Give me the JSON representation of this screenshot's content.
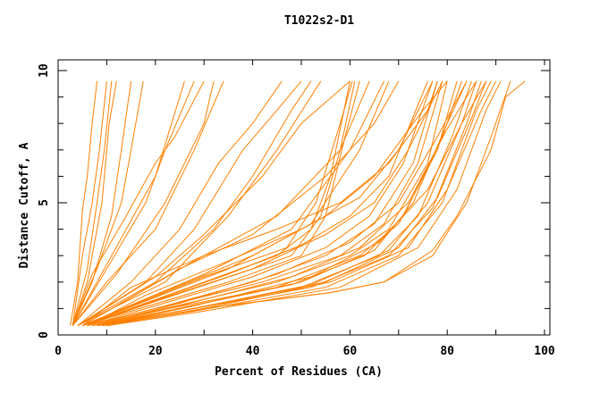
{
  "chart_data": {
    "type": "line",
    "title": "T1022s2-D1",
    "xlabel": "Percent of Residues (CA)",
    "ylabel": "Distance Cutoff, A",
    "xlim": [
      0,
      100
    ],
    "ylim": [
      0,
      10
    ],
    "x_ticks": [
      "0",
      "20",
      "40",
      "60",
      "80",
      "100"
    ],
    "y_ticks": [
      "0",
      "5",
      "10"
    ],
    "grid": false,
    "line_color": "#ff8000",
    "series": [
      {
        "points": [
          [
            2.5,
            0.35
          ],
          [
            4,
            2
          ],
          [
            5,
            4.7
          ],
          [
            6,
            6
          ],
          [
            7,
            8
          ],
          [
            8,
            9.6
          ]
        ]
      },
      {
        "points": [
          [
            3,
            0.35
          ],
          [
            5,
            3
          ],
          [
            7,
            5
          ],
          [
            8.5,
            7
          ],
          [
            10,
            9.6
          ]
        ]
      },
      {
        "points": [
          [
            3,
            0.35
          ],
          [
            6,
            2.5
          ],
          [
            8,
            5
          ],
          [
            9.5,
            7
          ],
          [
            11,
            9.6
          ]
        ]
      },
      {
        "points": [
          [
            3,
            0.35
          ],
          [
            6,
            2
          ],
          [
            9,
            5
          ],
          [
            10.5,
            8
          ],
          [
            12,
            9.6
          ]
        ]
      },
      {
        "points": [
          [
            3,
            0.35
          ],
          [
            7,
            2
          ],
          [
            11,
            4.5
          ],
          [
            13,
            7
          ],
          [
            15,
            9.6
          ]
        ]
      },
      {
        "points": [
          [
            3,
            0.35
          ],
          [
            8,
            2.5
          ],
          [
            13,
            5
          ],
          [
            15,
            7
          ],
          [
            17.5,
            9.6
          ]
        ]
      },
      {
        "points": [
          [
            3,
            0.35
          ],
          [
            8,
            2
          ],
          [
            14,
            4
          ],
          [
            20,
            6
          ],
          [
            26,
            9.6
          ]
        ]
      },
      {
        "points": [
          [
            3,
            0.35
          ],
          [
            10,
            2.5
          ],
          [
            18,
            5
          ],
          [
            22,
            7
          ],
          [
            28,
            9.6
          ]
        ]
      },
      {
        "points": [
          [
            3,
            0.35
          ],
          [
            7,
            2.3
          ],
          [
            14,
            4.5
          ],
          [
            20,
            6.5
          ],
          [
            24,
            7.5
          ],
          [
            30,
            9.6
          ]
        ]
      },
      {
        "points": [
          [
            3,
            0.35
          ],
          [
            10,
            2
          ],
          [
            20,
            4
          ],
          [
            28,
            7
          ],
          [
            34,
            9.6
          ]
        ]
      },
      {
        "points": [
          [
            3,
            0.35
          ],
          [
            12,
            2.3
          ],
          [
            22,
            5
          ],
          [
            30,
            8
          ],
          [
            32,
            9.6
          ]
        ]
      },
      {
        "points": [
          [
            4,
            0.35
          ],
          [
            15,
            2
          ],
          [
            25,
            4
          ],
          [
            33,
            6.5
          ],
          [
            40,
            8
          ],
          [
            46,
            9.6
          ]
        ]
      },
      {
        "points": [
          [
            4,
            0.35
          ],
          [
            18,
            2
          ],
          [
            28,
            4
          ],
          [
            38,
            7
          ],
          [
            45,
            8.5
          ],
          [
            50,
            9.6
          ]
        ]
      },
      {
        "points": [
          [
            4,
            0.35
          ],
          [
            20,
            2
          ],
          [
            32,
            4
          ],
          [
            40,
            6
          ],
          [
            48,
            8.5
          ],
          [
            52,
            9.6
          ]
        ]
      },
      {
        "points": [
          [
            4,
            0.35
          ],
          [
            22,
            2
          ],
          [
            35,
            4.5
          ],
          [
            45,
            7
          ],
          [
            54,
            9.6
          ]
        ]
      },
      {
        "points": [
          [
            4,
            0.35
          ],
          [
            20,
            2.2
          ],
          [
            30,
            3.8
          ],
          [
            42,
            6
          ],
          [
            50,
            8
          ],
          [
            60,
            9.6
          ]
        ]
      },
      {
        "points": [
          [
            5,
            0.35
          ],
          [
            30,
            2
          ],
          [
            45,
            3
          ],
          [
            52,
            4
          ],
          [
            56,
            6
          ],
          [
            60,
            9.6
          ]
        ]
      },
      {
        "points": [
          [
            5,
            0.35
          ],
          [
            32,
            2
          ],
          [
            48,
            3
          ],
          [
            54,
            4.5
          ],
          [
            58,
            7
          ],
          [
            61,
            9.6
          ]
        ]
      },
      {
        "points": [
          [
            5,
            0.35
          ],
          [
            35,
            2
          ],
          [
            50,
            3
          ],
          [
            55,
            4.5
          ],
          [
            59,
            7.5
          ],
          [
            62,
            9.6
          ]
        ]
      },
      {
        "points": [
          [
            5,
            0.35
          ],
          [
            30,
            2.2
          ],
          [
            47,
            3.3
          ],
          [
            53,
            5
          ],
          [
            58,
            8
          ],
          [
            60.5,
            9.6
          ]
        ]
      },
      {
        "points": [
          [
            5,
            0.35
          ],
          [
            25,
            2.5
          ],
          [
            40,
            3.8
          ],
          [
            55,
            6
          ],
          [
            65,
            8
          ],
          [
            70,
            9.6
          ]
        ]
      },
      {
        "points": [
          [
            5,
            0.35
          ],
          [
            30,
            2.3
          ],
          [
            48,
            4
          ],
          [
            60,
            7
          ],
          [
            67,
            9.6
          ]
        ]
      },
      {
        "points": [
          [
            5,
            0.35
          ],
          [
            28,
            2.8
          ],
          [
            45,
            4.5
          ],
          [
            58,
            7
          ],
          [
            64,
            9.6
          ]
        ]
      },
      {
        "points": [
          [
            5,
            0.35
          ],
          [
            35,
            2.5
          ],
          [
            52,
            4.2
          ],
          [
            62,
            7
          ],
          [
            68,
            9.6
          ]
        ]
      },
      {
        "points": [
          [
            6,
            0.35
          ],
          [
            20,
            1.1
          ],
          [
            40,
            2.2
          ],
          [
            55,
            3.3
          ],
          [
            64,
            4.5
          ],
          [
            71,
            6.5
          ],
          [
            77,
            9.6
          ]
        ]
      },
      {
        "points": [
          [
            6,
            0.35
          ],
          [
            20,
            1
          ],
          [
            40,
            2
          ],
          [
            55,
            3
          ],
          [
            65,
            4.2
          ],
          [
            73,
            6.5
          ],
          [
            78,
            9.6
          ]
        ]
      },
      {
        "points": [
          [
            7,
            0.35
          ],
          [
            20,
            1
          ],
          [
            42,
            2
          ],
          [
            58,
            3
          ],
          [
            67,
            4.2
          ],
          [
            74,
            6.5
          ],
          [
            79,
            9.6
          ]
        ]
      },
      {
        "points": [
          [
            7,
            0.35
          ],
          [
            22,
            1
          ],
          [
            45,
            2
          ],
          [
            60,
            3
          ],
          [
            68,
            4
          ],
          [
            76,
            6.5
          ],
          [
            80,
            9.6
          ]
        ]
      },
      {
        "points": [
          [
            7,
            0.35
          ],
          [
            20,
            0.9
          ],
          [
            45,
            1.8
          ],
          [
            62,
            3
          ],
          [
            70,
            4.2
          ],
          [
            78,
            7
          ],
          [
            82,
            9.6
          ]
        ]
      },
      {
        "points": [
          [
            8,
            0.35
          ],
          [
            22,
            0.9
          ],
          [
            48,
            1.9
          ],
          [
            63,
            3
          ],
          [
            71,
            4.5
          ],
          [
            79,
            7.5
          ],
          [
            83,
            9.6
          ]
        ]
      },
      {
        "points": [
          [
            8,
            0.35
          ],
          [
            25,
            1
          ],
          [
            50,
            2
          ],
          [
            65,
            3.2
          ],
          [
            73,
            5
          ],
          [
            80,
            8
          ],
          [
            84,
            9.6
          ]
        ]
      },
      {
        "points": [
          [
            8,
            0.35
          ],
          [
            25,
            0.9
          ],
          [
            50,
            1.8
          ],
          [
            66,
            3
          ],
          [
            74,
            4.5
          ],
          [
            81,
            7.5
          ],
          [
            85,
            9.6
          ]
        ]
      },
      {
        "points": [
          [
            8,
            0.35
          ],
          [
            25,
            0.9
          ],
          [
            52,
            1.9
          ],
          [
            68,
            3.2
          ],
          [
            76,
            5
          ],
          [
            83,
            8
          ],
          [
            86,
            9.6
          ]
        ]
      },
      {
        "points": [
          [
            9,
            0.35
          ],
          [
            25,
            0.9
          ],
          [
            52,
            1.8
          ],
          [
            68,
            3
          ],
          [
            77,
            4.8
          ],
          [
            84,
            8
          ],
          [
            87,
            9.6
          ]
        ]
      },
      {
        "points": [
          [
            9,
            0.35
          ],
          [
            28,
            1
          ],
          [
            55,
            2
          ],
          [
            70,
            3.3
          ],
          [
            78,
            5.2
          ],
          [
            85,
            8.2
          ],
          [
            88,
            9.6
          ]
        ]
      },
      {
        "points": [
          [
            9,
            0.35
          ],
          [
            28,
            0.9
          ],
          [
            55,
            1.8
          ],
          [
            70,
            3
          ],
          [
            79,
            5
          ],
          [
            86,
            8.5
          ],
          [
            89,
            9.6
          ]
        ]
      },
      {
        "points": [
          [
            10,
            0.35
          ],
          [
            30,
            1
          ],
          [
            56,
            2
          ],
          [
            72,
            3.3
          ],
          [
            80,
            5.5
          ],
          [
            87,
            8.5
          ],
          [
            90,
            9.6
          ]
        ]
      },
      {
        "points": [
          [
            10,
            0.35
          ],
          [
            30,
            0.9
          ],
          [
            58,
            1.8
          ],
          [
            74,
            3.3
          ],
          [
            82,
            5.5
          ],
          [
            88,
            8.5
          ],
          [
            91,
            9.6
          ]
        ]
      },
      {
        "points": [
          [
            10,
            0.35
          ],
          [
            30,
            1
          ],
          [
            56,
            1.6
          ],
          [
            67,
            2
          ],
          [
            77,
            3
          ],
          [
            84,
            5
          ],
          [
            89,
            7.5
          ],
          [
            93,
            9.6
          ]
        ]
      },
      {
        "points": [
          [
            10,
            0.35
          ],
          [
            30,
            1
          ],
          [
            56,
            1.6
          ],
          [
            67,
            2
          ],
          [
            77,
            3.2
          ],
          [
            82,
            4.5
          ],
          [
            89,
            7
          ],
          [
            92,
            9
          ],
          [
            96,
            9.6
          ]
        ]
      },
      {
        "points": [
          [
            6,
            0.35
          ],
          [
            18,
            1.2
          ],
          [
            35,
            2.3
          ],
          [
            50,
            3.4
          ],
          [
            60,
            4.5
          ],
          [
            68,
            6
          ],
          [
            76,
            9.6
          ]
        ]
      },
      {
        "points": [
          [
            6,
            0.35
          ],
          [
            18,
            1.5
          ],
          [
            35,
            2.8
          ],
          [
            50,
            4
          ],
          [
            62,
            5.2
          ],
          [
            70,
            7
          ],
          [
            77,
            9.6
          ]
        ]
      },
      {
        "points": [
          [
            6,
            0.35
          ],
          [
            20,
            1.3
          ],
          [
            40,
            2.5
          ],
          [
            55,
            3.8
          ],
          [
            65,
            5
          ],
          [
            72,
            7
          ],
          [
            79,
            9.6
          ]
        ]
      },
      {
        "points": [
          [
            8,
            0.35
          ],
          [
            25,
            1.2
          ],
          [
            45,
            2.3
          ],
          [
            60,
            3.5
          ],
          [
            70,
            5
          ],
          [
            78,
            7.5
          ],
          [
            84,
            9.6
          ]
        ]
      },
      {
        "points": [
          [
            8,
            0.35
          ],
          [
            25,
            1.1
          ],
          [
            48,
            2.2
          ],
          [
            62,
            3.3
          ],
          [
            72,
            5
          ],
          [
            80,
            7.8
          ],
          [
            86,
            9.6
          ]
        ]
      },
      {
        "points": [
          [
            9,
            0.35
          ],
          [
            28,
            1.1
          ],
          [
            52,
            2.2
          ],
          [
            66,
            3.5
          ],
          [
            76,
            5.5
          ],
          [
            83,
            8
          ],
          [
            88,
            9.6
          ]
        ]
      },
      {
        "points": [
          [
            5,
            0.35
          ],
          [
            20,
            1.5
          ],
          [
            40,
            3
          ],
          [
            55,
            4.5
          ],
          [
            65,
            6
          ],
          [
            75,
            8.5
          ],
          [
            80,
            9.6
          ]
        ]
      },
      {
        "points": [
          [
            5,
            0.35
          ],
          [
            15,
            1.8
          ],
          [
            30,
            3
          ],
          [
            45,
            4
          ],
          [
            58,
            5
          ],
          [
            68,
            6.5
          ],
          [
            76,
            8.5
          ],
          [
            78,
            9.6
          ]
        ]
      }
    ]
  }
}
